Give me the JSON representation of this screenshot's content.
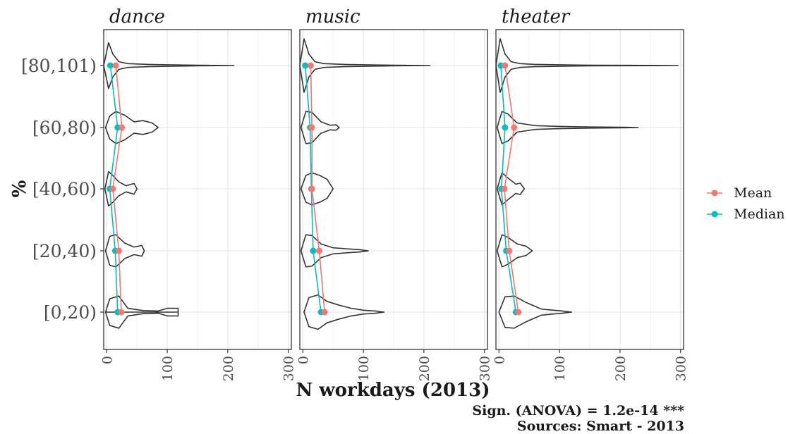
{
  "chart_data": {
    "type": "violin",
    "ylabel": "%",
    "xlabel": "N workdays (2013)",
    "xlim": [
      -5,
      305
    ],
    "x_ticks": [
      0,
      100,
      200,
      300
    ],
    "categories": [
      "[0,20)",
      "[20,40)",
      "[40,60)",
      "[60,80)",
      "[80,101)"
    ],
    "grid": true,
    "legend_position": "right",
    "series": [
      {
        "name": "Mean",
        "color": "#F8766D"
      },
      {
        "name": "Median",
        "color": "#00BFC4"
      }
    ],
    "facets": [
      {
        "title": "dance",
        "mean": [
          24,
          20,
          10,
          25,
          15
        ],
        "median": [
          18,
          14,
          5,
          18,
          6
        ],
        "violins": [
          {
            "x": [
              -2,
              5,
              20,
              35,
              60,
              85,
              100,
              118,
              118,
              100,
              80,
              60,
              40,
              25,
              12,
              2,
              -2
            ],
            "w": [
              0.0,
              0.35,
              0.42,
              0.1,
              0.04,
              0.03,
              0.1,
              0.1,
              0.0,
              0.0,
              0.0,
              0.0,
              0.0,
              0.0,
              0.0,
              0.0,
              0.0
            ],
            "min": -2,
            "max": 118
          },
          {
            "x": [
              -2,
              5,
              15,
              30,
              45,
              58,
              62
            ],
            "w": [
              0.0,
              0.38,
              0.42,
              0.2,
              0.1,
              0.14,
              0.0
            ],
            "min": -2,
            "max": 62
          },
          {
            "x": [
              -3,
              3,
              10,
              20,
              32,
              45,
              50
            ],
            "w": [
              0.0,
              0.45,
              0.35,
              0.18,
              0.08,
              0.14,
              0.0
            ],
            "min": -3,
            "max": 50
          },
          {
            "x": [
              -2,
              5,
              15,
              30,
              45,
              60,
              75,
              85
            ],
            "w": [
              0.0,
              0.3,
              0.42,
              0.32,
              0.15,
              0.18,
              0.12,
              0.0
            ],
            "min": -2,
            "max": 85
          },
          {
            "x": [
              -5,
              3,
              10,
              20,
              35,
              50,
              70,
              100,
              150,
              210
            ],
            "w": [
              0.0,
              0.6,
              0.3,
              0.1,
              0.05,
              0.04,
              0.03,
              0.02,
              0.008,
              0.0
            ],
            "min": -5,
            "max": 210
          }
        ]
      },
      {
        "title": "music",
        "mean": [
          36,
          27,
          15,
          15,
          13
        ],
        "median": [
          30,
          17,
          14,
          12,
          4
        ],
        "violins": [
          {
            "x": [
              2,
              10,
              25,
              40,
              60,
              80,
              100,
              120,
              134
            ],
            "w": [
              0.0,
              0.38,
              0.45,
              0.28,
              0.18,
              0.1,
              0.05,
              0.03,
              0.0
            ],
            "min": 2,
            "max": 134
          },
          {
            "x": [
              -3,
              5,
              15,
              30,
              50,
              75,
              95,
              108
            ],
            "w": [
              0.0,
              0.42,
              0.4,
              0.18,
              0.08,
              0.05,
              0.03,
              0.0
            ],
            "min": -3,
            "max": 108
          },
          {
            "x": [
              -3,
              5,
              15,
              28,
              40,
              50
            ],
            "w": [
              0.0,
              0.35,
              0.42,
              0.35,
              0.25,
              0.0
            ],
            "min": -3,
            "max": 50
          },
          {
            "x": [
              -3,
              5,
              15,
              30,
              45,
              55,
              60
            ],
            "w": [
              0.0,
              0.42,
              0.4,
              0.15,
              0.06,
              0.07,
              0.0
            ],
            "min": -3,
            "max": 60
          },
          {
            "x": [
              -5,
              2,
              10,
              20,
              35,
              50,
              70,
              100,
              150,
              210
            ],
            "w": [
              0.0,
              0.7,
              0.3,
              0.1,
              0.05,
              0.04,
              0.03,
              0.02,
              0.008,
              0.0
            ],
            "min": -5,
            "max": 210
          }
        ]
      },
      {
        "title": "theater",
        "mean": [
          32,
          17,
          9,
          25,
          10
        ],
        "median": [
          28,
          12,
          4,
          10,
          3
        ],
        "violins": [
          {
            "x": [
              0,
              10,
              25,
              45,
              70,
              90,
              105,
              120
            ],
            "w": [
              0.0,
              0.4,
              0.42,
              0.25,
              0.08,
              0.05,
              0.03,
              0.0
            ],
            "min": 0,
            "max": 120
          },
          {
            "x": [
              -3,
              5,
              15,
              30,
              45,
              55
            ],
            "w": [
              0.0,
              0.42,
              0.35,
              0.18,
              0.12,
              0.0
            ],
            "min": -3,
            "max": 55
          },
          {
            "x": [
              -3,
              5,
              15,
              28,
              35,
              42
            ],
            "w": [
              0.0,
              0.42,
              0.28,
              0.12,
              0.15,
              0.0
            ],
            "min": -3,
            "max": 42
          },
          {
            "x": [
              -3,
              5,
              15,
              30,
              60,
              100,
              150,
              200,
              230
            ],
            "w": [
              0.0,
              0.42,
              0.35,
              0.12,
              0.05,
              0.03,
              0.015,
              0.01,
              0.0
            ],
            "min": -3,
            "max": 230
          },
          {
            "x": [
              -5,
              2,
              10,
              20,
              35,
              60,
              100,
              150,
              200,
              250,
              296
            ],
            "w": [
              0.0,
              0.7,
              0.3,
              0.1,
              0.05,
              0.03,
              0.02,
              0.01,
              0.006,
              0.004,
              0.0
            ],
            "min": -5,
            "max": 296
          }
        ]
      }
    ]
  },
  "caption": {
    "significance": "Sign. (ANOVA) = 1.2e-14 ***",
    "sources": "Sources: Smart - 2013"
  }
}
